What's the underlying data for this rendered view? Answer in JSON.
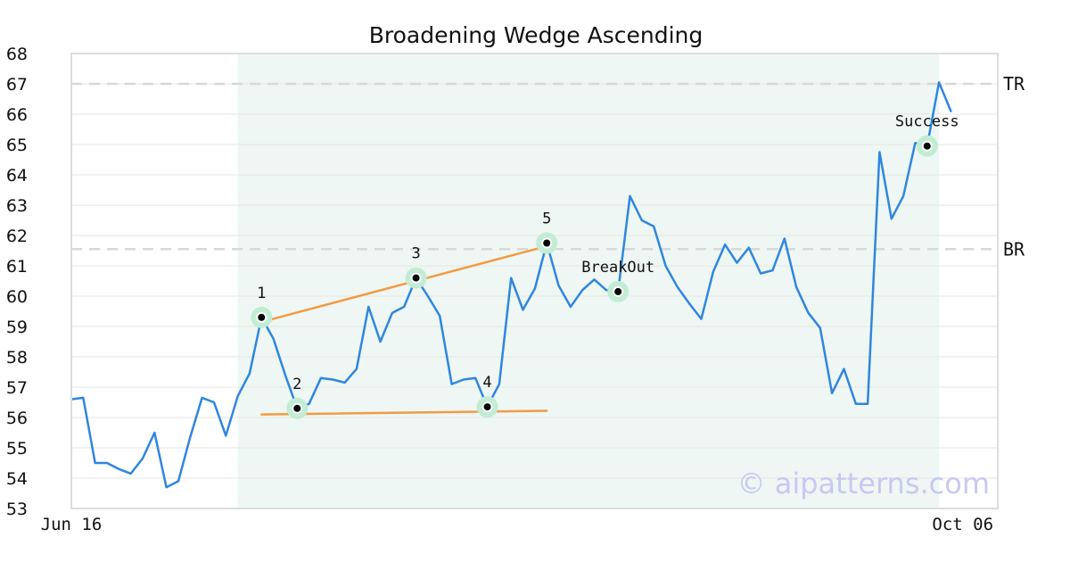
{
  "chart_data": {
    "type": "line",
    "title": "Broadening Wedge Ascending",
    "xlabel": "",
    "ylabel": "",
    "ylim": [
      53,
      68
    ],
    "yticks": [
      53,
      54,
      55,
      56,
      57,
      58,
      59,
      60,
      61,
      62,
      63,
      64,
      65,
      66,
      67,
      68
    ],
    "xticks": [
      {
        "index": 0,
        "label": "Jun 16"
      },
      {
        "index": 75,
        "label": "Oct 06"
      }
    ],
    "grid": "horizontal",
    "series": [
      {
        "color": "#2f86e0",
        "values": [
          56.6,
          56.65,
          54.5,
          54.5,
          54.3,
          54.15,
          54.65,
          55.5,
          53.7,
          53.9,
          55.35,
          56.65,
          56.5,
          55.4,
          56.7,
          57.45,
          59.3,
          58.6,
          57.4,
          56.3,
          56.45,
          57.3,
          57.25,
          57.15,
          57.6,
          59.65,
          58.5,
          59.45,
          59.65,
          60.6,
          60.0,
          59.35,
          57.1,
          57.25,
          57.3,
          56.35,
          57.1,
          60.6,
          59.55,
          60.25,
          61.75,
          60.35,
          59.65,
          60.2,
          60.55,
          60.2,
          60.15,
          63.3,
          62.5,
          62.3,
          61.0,
          60.3,
          59.75,
          59.25,
          60.8,
          61.7,
          61.1,
          61.6,
          60.75,
          60.85,
          61.9,
          60.3,
          59.45,
          58.95,
          56.8,
          57.6,
          56.45,
          56.45,
          64.75,
          62.55,
          63.3,
          65.05,
          64.95,
          67.05,
          66.1
        ]
      }
    ],
    "highlight_range": {
      "start_index": 14,
      "end_index": 73,
      "color": "#eef7f3"
    },
    "reference_lines": [
      {
        "label": "TR",
        "value": 67.0
      },
      {
        "label": "BR",
        "value": 61.55
      }
    ],
    "pattern_points": [
      {
        "label": "1",
        "index": 16,
        "value": 59.3
      },
      {
        "label": "2",
        "index": 19,
        "value": 56.3
      },
      {
        "label": "3",
        "index": 29,
        "value": 60.6
      },
      {
        "label": "4",
        "index": 35,
        "value": 56.35
      },
      {
        "label": "5",
        "index": 40,
        "value": 61.75
      },
      {
        "label": "BreakOut",
        "index": 46,
        "value": 60.15
      },
      {
        "label": "Success",
        "index": 72,
        "value": 64.95
      }
    ],
    "trend_lines": [
      {
        "color": "#f39a45",
        "from": {
          "index": 16,
          "value": 59.15
        },
        "to": {
          "index": 40,
          "value": 61.65
        }
      },
      {
        "color": "#f39a45",
        "from": {
          "index": 16,
          "value": 56.1
        },
        "to": {
          "index": 40,
          "value": 56.22
        }
      }
    ],
    "watermark": "© aipatterns.com"
  }
}
